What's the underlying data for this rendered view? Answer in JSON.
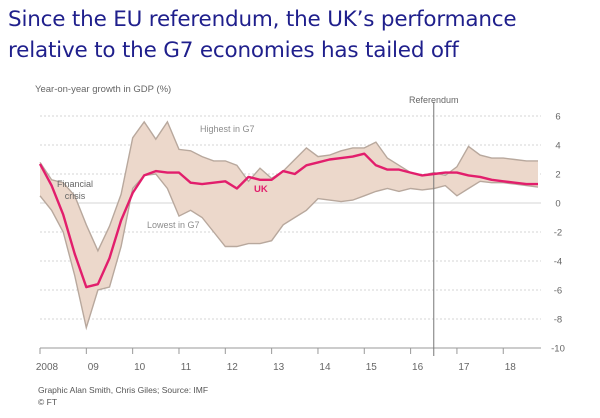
{
  "slide": {
    "title_line1": "Since the EU referendum, the UK’s performance",
    "title_line2": "relative to the G7 economies has tailed off"
  },
  "footer": {
    "credit": "Graphic Alan Smith, Chris Giles; Source: IMF",
    "copyright": "© FT"
  },
  "chart_data": {
    "type": "area",
    "title": "",
    "ylabel": "Year-on-year growth in GDP (%)",
    "xlabel": "",
    "ylim": [
      -10,
      6
    ],
    "xlim": [
      2008,
      2018.75
    ],
    "y_ticks": [
      "6",
      "4",
      "2",
      "0",
      "-2",
      "-4",
      "-6",
      "-8",
      "-10"
    ],
    "y_tick_values": [
      6,
      4,
      2,
      0,
      -2,
      -4,
      -6,
      -8,
      -10
    ],
    "x_ticks": [
      "2008",
      "09",
      "10",
      "11",
      "12",
      "13",
      "14",
      "15",
      "16",
      "17",
      "18"
    ],
    "x_tick_values": [
      2008,
      2009,
      2010,
      2011,
      2012,
      2013,
      2014,
      2015,
      2016,
      2017,
      2018
    ],
    "grid": true,
    "colors": {
      "band_fill": "#ecd8cb",
      "band_edge": "#b8a89d",
      "uk_line": "#e21e6c",
      "grid": "#c9c9c9",
      "text": "#666666"
    },
    "annotations": {
      "highest": "Highest in G7",
      "lowest": "Lowest in G7",
      "uk": "UK",
      "crisis_line1": "Financial",
      "crisis_line2": "crisis",
      "referendum": "Referendum"
    },
    "referendum_x": 2016.5,
    "series": [
      {
        "name": "Highest in G7",
        "x": [
          2008,
          2008.25,
          2008.5,
          2008.75,
          2009,
          2009.25,
          2009.5,
          2009.75,
          2010,
          2010.25,
          2010.5,
          2010.75,
          2011,
          2011.25,
          2011.5,
          2011.75,
          2012,
          2012.25,
          2012.5,
          2012.75,
          2013,
          2013.25,
          2013.5,
          2013.75,
          2014,
          2014.25,
          2014.5,
          2014.75,
          2015,
          2015.25,
          2015.5,
          2015.75,
          2016,
          2016.25,
          2016.5,
          2016.75,
          2017,
          2017.25,
          2017.5,
          2017.75,
          2018,
          2018.25,
          2018.5,
          2018.75
        ],
        "values": [
          2.8,
          1.6,
          1.4,
          0.5,
          -1.5,
          -3.3,
          -1.6,
          0.6,
          4.5,
          5.6,
          4.4,
          5.6,
          3.7,
          3.6,
          3.2,
          2.9,
          2.9,
          2.6,
          1.5,
          2.4,
          1.7,
          2.2,
          3.0,
          3.8,
          3.2,
          3.3,
          3.6,
          3.8,
          3.8,
          4.2,
          3.1,
          2.6,
          2.1,
          1.9,
          2.1,
          1.9,
          2.5,
          3.9,
          3.3,
          3.1,
          3.1,
          3.0,
          2.9,
          2.9
        ]
      },
      {
        "name": "Lowest in G7",
        "x": [
          2008,
          2008.25,
          2008.5,
          2008.75,
          2009,
          2009.25,
          2009.5,
          2009.75,
          2010,
          2010.25,
          2010.5,
          2010.75,
          2011,
          2011.25,
          2011.5,
          2011.75,
          2012,
          2012.25,
          2012.5,
          2012.75,
          2013,
          2013.25,
          2013.5,
          2013.75,
          2014,
          2014.25,
          2014.5,
          2014.75,
          2015,
          2015.25,
          2015.5,
          2015.75,
          2016,
          2016.25,
          2016.5,
          2016.75,
          2017,
          2017.25,
          2017.5,
          2017.75,
          2018,
          2018.25,
          2018.5,
          2018.75
        ],
        "values": [
          0.5,
          -0.5,
          -2.0,
          -5.0,
          -8.6,
          -6.0,
          -5.8,
          -3.0,
          1.0,
          1.9,
          2.0,
          1.0,
          -0.9,
          -0.5,
          -1.0,
          -2.0,
          -3.0,
          -3.0,
          -2.8,
          -2.8,
          -2.6,
          -1.5,
          -1.0,
          -0.5,
          0.3,
          0.2,
          0.1,
          0.2,
          0.5,
          0.8,
          1.0,
          0.8,
          1.0,
          0.9,
          1.0,
          1.2,
          0.5,
          1.0,
          1.5,
          1.4,
          1.4,
          1.3,
          1.2,
          1.1
        ]
      },
      {
        "name": "UK",
        "x": [
          2008,
          2008.25,
          2008.5,
          2008.75,
          2009,
          2009.25,
          2009.5,
          2009.75,
          2010,
          2010.25,
          2010.5,
          2010.75,
          2011,
          2011.25,
          2011.5,
          2011.75,
          2012,
          2012.25,
          2012.5,
          2012.75,
          2013,
          2013.25,
          2013.5,
          2013.75,
          2014,
          2014.25,
          2014.5,
          2014.75,
          2015,
          2015.25,
          2015.5,
          2015.75,
          2016,
          2016.25,
          2016.5,
          2016.75,
          2017,
          2017.25,
          2017.5,
          2017.75,
          2018,
          2018.25,
          2018.5,
          2018.75
        ],
        "values": [
          2.7,
          1.2,
          -0.8,
          -3.5,
          -5.8,
          -5.6,
          -3.8,
          -1.2,
          0.7,
          1.9,
          2.2,
          2.1,
          2.1,
          1.4,
          1.3,
          1.4,
          1.5,
          1.0,
          1.8,
          1.6,
          1.6,
          2.2,
          2.0,
          2.6,
          2.8,
          3.0,
          3.1,
          3.2,
          3.4,
          2.6,
          2.3,
          2.3,
          2.1,
          1.9,
          2.0,
          2.1,
          2.1,
          1.9,
          1.8,
          1.6,
          1.5,
          1.4,
          1.3,
          1.3
        ]
      }
    ]
  }
}
